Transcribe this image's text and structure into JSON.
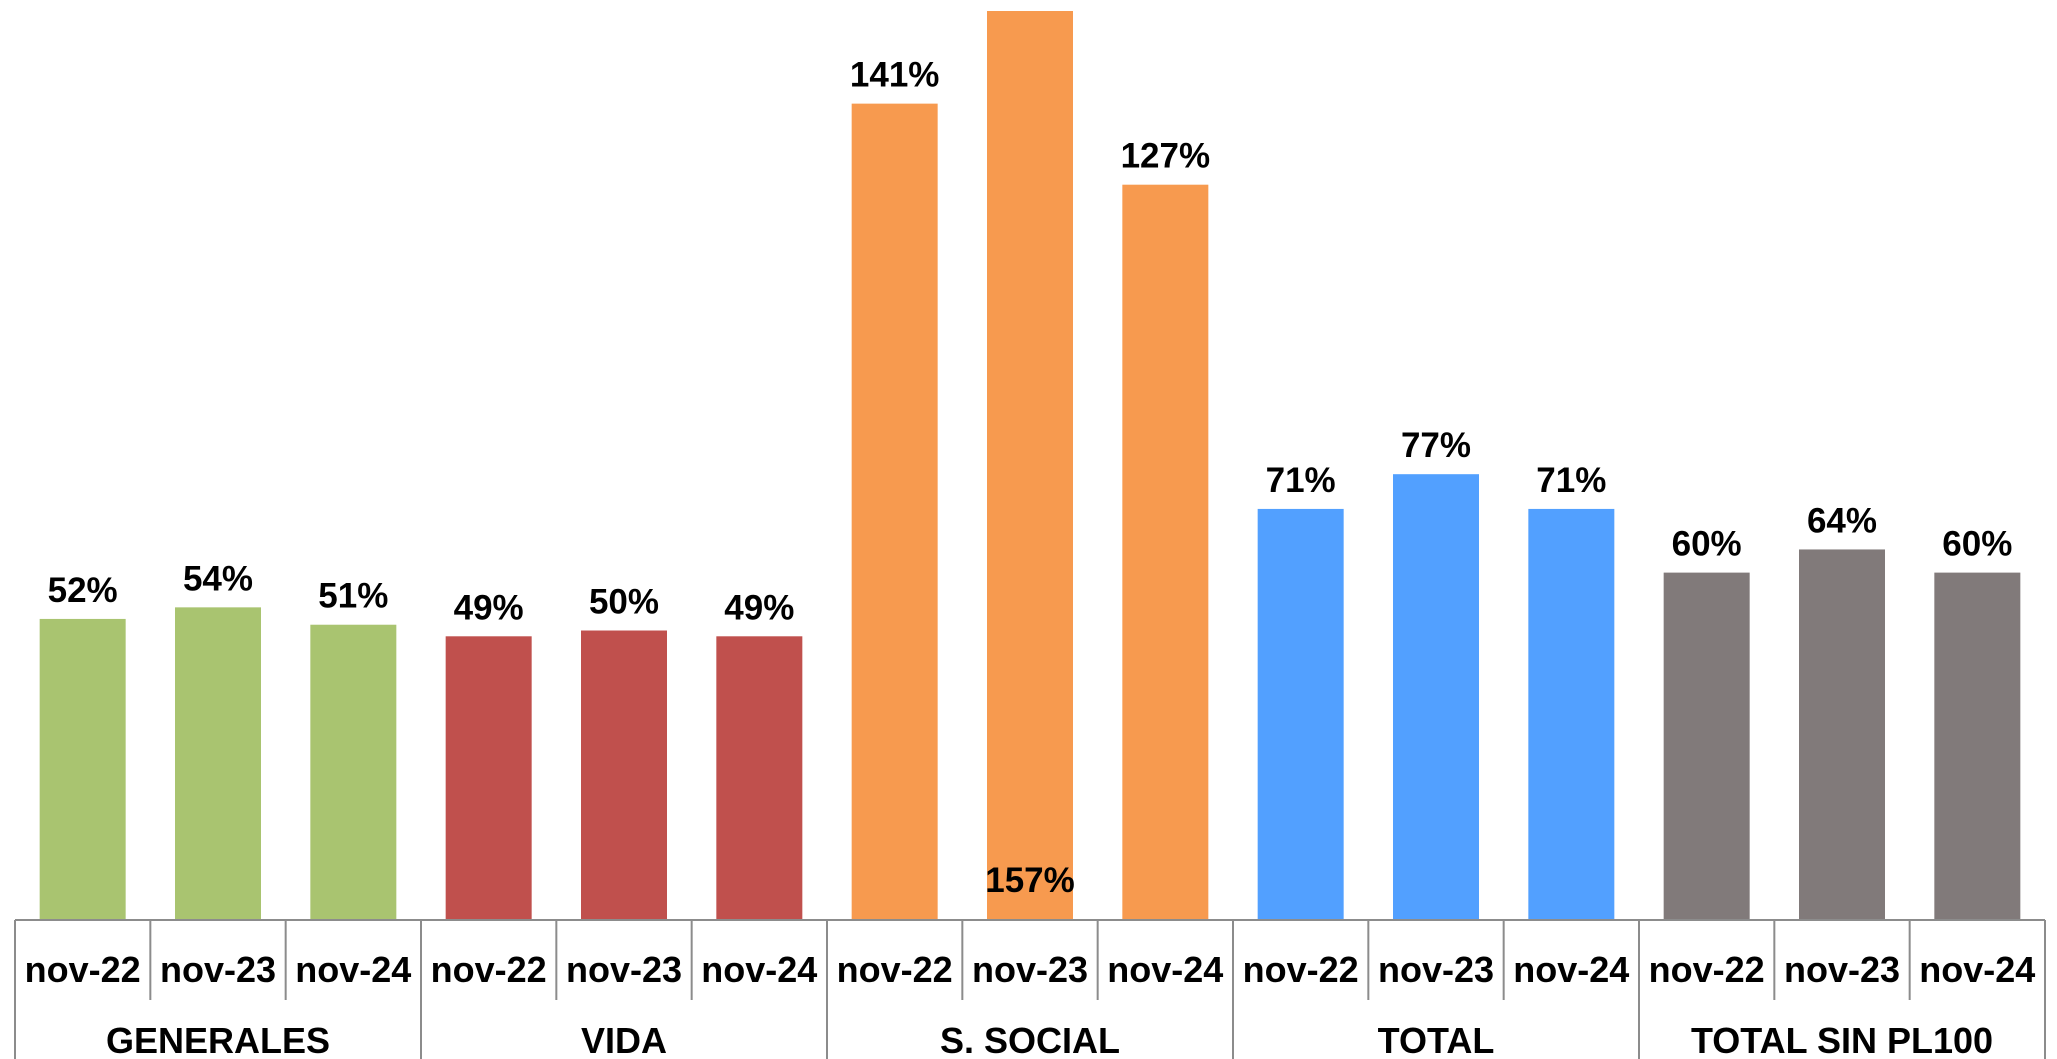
{
  "chart_data": {
    "type": "bar",
    "value_suffix": "%",
    "ylim": [
      0,
      157
    ],
    "groups": [
      {
        "name": "GENERALES",
        "color": "#a9c470",
        "categories": [
          "nov-22",
          "nov-23",
          "nov-24"
        ],
        "values": [
          52,
          54,
          51
        ]
      },
      {
        "name": "VIDA",
        "color": "#c0504d",
        "categories": [
          "nov-22",
          "nov-23",
          "nov-24"
        ],
        "values": [
          49,
          50,
          49
        ]
      },
      {
        "name": "S. SOCIAL",
        "color": "#f79a4f",
        "categories": [
          "nov-22",
          "nov-23",
          "nov-24"
        ],
        "values": [
          141,
          157,
          127
        ]
      },
      {
        "name": "TOTAL",
        "color": "#52a0ff",
        "categories": [
          "nov-22",
          "nov-23",
          "nov-24"
        ],
        "values": [
          71,
          77,
          71
        ]
      },
      {
        "name": "TOTAL SIN PL100",
        "color": "#817a7a",
        "categories": [
          "nov-22",
          "nov-23",
          "nov-24"
        ],
        "values": [
          60,
          64,
          60
        ]
      }
    ],
    "grid": false,
    "legend": "none"
  }
}
